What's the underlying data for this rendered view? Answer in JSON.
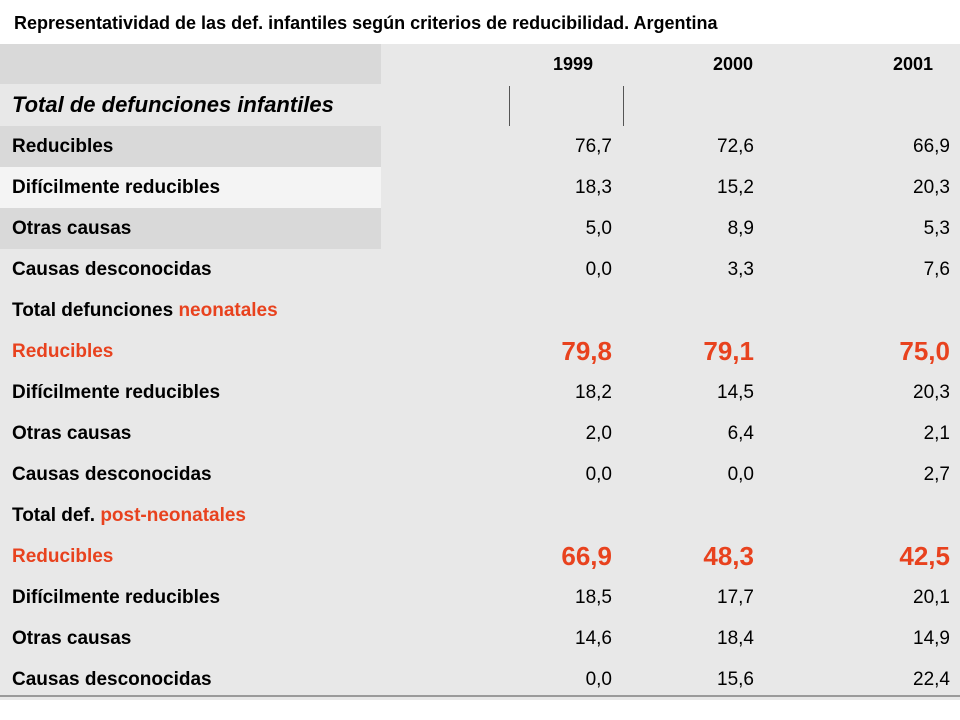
{
  "title": "Representatividad de las def. infantiles según criterios de reducibilidad. Argentina",
  "chart_data": {
    "type": "table",
    "title": "Representatividad de las def. infantiles según criterios de reducibilidad. Argentina",
    "columns": [
      "1999",
      "2000",
      "2001"
    ],
    "sections": [
      {
        "heading": "Total de defunciones infantiles",
        "rows": [
          {
            "label": "Reducibles",
            "values": [
              "76,7",
              "72,6",
              "66,9"
            ]
          },
          {
            "label": "Difícilmente reducibles",
            "values": [
              "18,3",
              "15,2",
              "20,3"
            ]
          },
          {
            "label": "Otras causas",
            "values": [
              "5,0",
              "8,9",
              "5,3"
            ]
          },
          {
            "label": "Causas desconocidas",
            "values": [
              "0,0",
              "3,3",
              "7,6"
            ]
          }
        ]
      },
      {
        "heading_prefix": "Total defunciones ",
        "heading_accent": "neonatales",
        "rows": [
          {
            "label": "Reducibles",
            "values": [
              "79,8",
              "79,1",
              "75,0"
            ],
            "highlight": true
          },
          {
            "label": "Difícilmente reducibles",
            "values": [
              "18,2",
              "14,5",
              "20,3"
            ]
          },
          {
            "label": "Otras causas",
            "values": [
              "2,0",
              "6,4",
              "2,1"
            ]
          },
          {
            "label": "Causas desconocidas",
            "values": [
              "0,0",
              "0,0",
              "2,7"
            ]
          }
        ]
      },
      {
        "heading_prefix": "Total def. ",
        "heading_accent": "post-neonatales",
        "rows": [
          {
            "label": "Reducibles",
            "values": [
              "66,9",
              "48,3",
              "42,5"
            ],
            "highlight": true
          },
          {
            "label": "Difícilmente reducibles",
            "values": [
              "18,5",
              "17,7",
              "20,1"
            ]
          },
          {
            "label": "Otras causas",
            "values": [
              "14,6",
              "18,4",
              "14,9"
            ]
          },
          {
            "label": "Causas desconocidas",
            "values": [
              "0,0",
              "15,6",
              "22,4"
            ]
          }
        ]
      }
    ]
  },
  "colors": {
    "accent": "#e8421e",
    "label_bg_dark": "#d9d9d9",
    "value_bg": "#e8e8e8",
    "label_bg_light": "#f4f4f4"
  }
}
